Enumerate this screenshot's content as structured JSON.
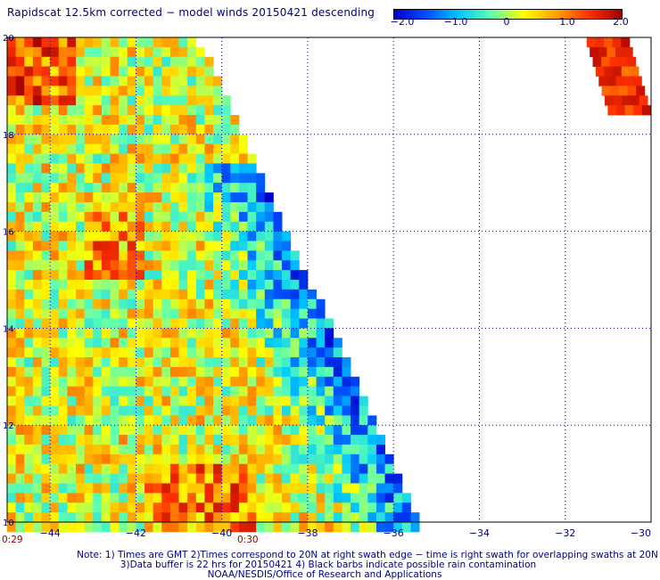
{
  "title": "Rapidscat 12.5km corrected − model winds 20150421 descending",
  "colorbar": {
    "colors": [
      "#0000c8",
      "#0050ff",
      "#00c8ff",
      "#60ffb0",
      "#ffff00",
      "#ffa000",
      "#ff3000",
      "#a00000"
    ],
    "ticks": [
      "−2.0",
      "−1.0",
      "0",
      "1.0",
      "2.0"
    ],
    "range": [
      -2.0,
      2.0
    ]
  },
  "map": {
    "x_ticks": [
      "−44",
      "−42",
      "−40",
      "−38",
      "−36",
      "−34",
      "−32",
      "−30"
    ],
    "y_ticks": [
      "20",
      "18",
      "16",
      "14",
      "12",
      "10"
    ],
    "lon_range": [
      -45,
      -30
    ],
    "lat_range": [
      10,
      20
    ],
    "grid": "dotted",
    "time_labels": [
      "0:29",
      "0:30"
    ]
  },
  "notes": [
    "Note: 1) Times are GMT 2)Times correspond to 20N at right swath edge − time is right swath for overlapping swaths at 20N",
    "3)Data buffer is 22 hrs for 20150421 4) Black barbs indicate possible rain contamination",
    "NOAA/NESDIS/Office of Research and Applications"
  ]
}
